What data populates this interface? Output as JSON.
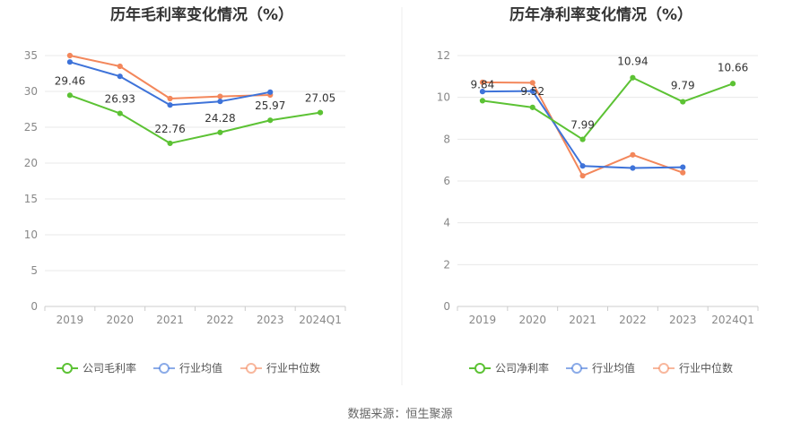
{
  "source_note": "数据来源：恒生聚源",
  "chart_data": [
    {
      "type": "line",
      "title": "历年毛利率变化情况（%）",
      "categories": [
        "2019",
        "2020",
        "2021",
        "2022",
        "2023",
        "2024Q1"
      ],
      "ylim": [
        0,
        35
      ],
      "yticks": [
        0,
        5,
        10,
        15,
        20,
        25,
        30,
        35
      ],
      "grid": true,
      "legend_position": "bottom",
      "series": [
        {
          "name": "公司毛利率",
          "color": "#5cc234",
          "values": [
            29.46,
            26.93,
            22.76,
            24.28,
            25.97,
            27.05
          ],
          "labels": [
            "29.46",
            "26.93",
            "22.76",
            "24.28",
            "25.97",
            "27.05"
          ]
        },
        {
          "name": "行业均值",
          "color": "#3e73d9",
          "values": [
            34.1,
            32.1,
            28.1,
            28.6,
            29.9,
            null
          ]
        },
        {
          "name": "行业中位数",
          "color": "#f3875b",
          "values": [
            35.0,
            33.5,
            29.0,
            29.3,
            29.5,
            null
          ]
        }
      ]
    },
    {
      "type": "line",
      "title": "历年净利率变化情况（%）",
      "categories": [
        "2019",
        "2020",
        "2021",
        "2022",
        "2023",
        "2024Q1"
      ],
      "ylim": [
        0,
        12
      ],
      "yticks": [
        0,
        2,
        4,
        6,
        8,
        10,
        12
      ],
      "grid": true,
      "legend_position": "bottom",
      "series": [
        {
          "name": "公司净利率",
          "color": "#5cc234",
          "values": [
            9.84,
            9.52,
            7.99,
            10.94,
            9.79,
            10.66
          ],
          "labels": [
            "9.84",
            "9.52",
            "7.99",
            "10.94",
            "9.79",
            "10.66"
          ]
        },
        {
          "name": "行业均值",
          "color": "#3e73d9",
          "values": [
            10.28,
            10.3,
            6.72,
            6.62,
            6.66,
            null
          ]
        },
        {
          "name": "行业中位数",
          "color": "#f3875b",
          "values": [
            10.72,
            10.7,
            6.25,
            7.25,
            6.4,
            null
          ]
        }
      ]
    }
  ]
}
